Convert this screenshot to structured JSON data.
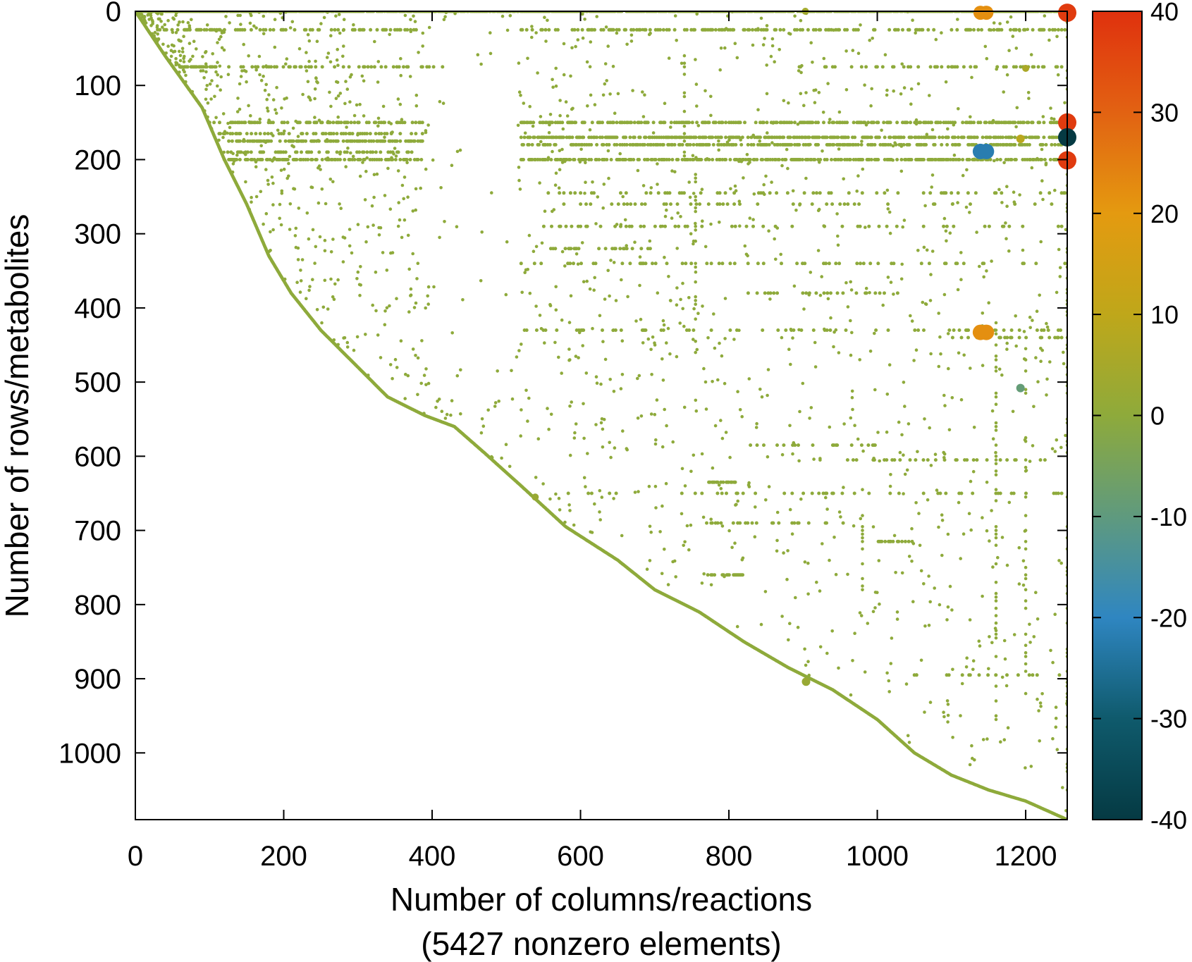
{
  "chart_data": {
    "type": "scatter",
    "subtype": "sparsity-pattern",
    "xlabel": "Number of columns/reactions",
    "xlabel_line2": "(5427 nonzero elements)",
    "ylabel": "Number of rows/metabolites",
    "xlim": [
      0,
      1256
    ],
    "ylim": [
      1090,
      0
    ],
    "x_ticks": [
      0,
      200,
      400,
      600,
      800,
      1000,
      1200
    ],
    "x_tick_labels": [
      "0",
      "200",
      "400",
      "600",
      "800",
      "1000",
      "1200"
    ],
    "y_ticks": [
      0,
      100,
      200,
      300,
      400,
      500,
      600,
      700,
      800,
      900,
      1000
    ],
    "y_tick_labels": [
      "0",
      "100",
      "200",
      "300",
      "400",
      "500",
      "600",
      "700",
      "800",
      "900",
      "1000"
    ],
    "colorbar": {
      "range": [
        -40,
        40
      ],
      "ticks": [
        40,
        30,
        20,
        10,
        0,
        -10,
        -20,
        -30,
        -40
      ],
      "tick_labels": [
        "40",
        "30",
        "20",
        "10",
        "0",
        "-10",
        "-20",
        "-30",
        "-40"
      ],
      "colors": [
        {
          "v": -40,
          "c": "#053a43"
        },
        {
          "v": -30,
          "c": "#0f5a6c"
        },
        {
          "v": -20,
          "c": "#2f86c1"
        },
        {
          "v": -10,
          "c": "#5f9a7e"
        },
        {
          "v": 0,
          "c": "#8eaa3b"
        },
        {
          "v": 10,
          "c": "#bfa71a"
        },
        {
          "v": 20,
          "c": "#e49a10"
        },
        {
          "v": 30,
          "c": "#e26212"
        },
        {
          "v": 40,
          "c": "#e0310e"
        }
      ]
    },
    "diagonal": [
      [
        0,
        0
      ],
      [
        40,
        60
      ],
      [
        90,
        130
      ],
      [
        120,
        200
      ],
      [
        150,
        260
      ],
      [
        180,
        330
      ],
      [
        210,
        380
      ],
      [
        250,
        430
      ],
      [
        300,
        480
      ],
      [
        340,
        520
      ],
      [
        390,
        545
      ],
      [
        430,
        560
      ],
      [
        470,
        595
      ],
      [
        520,
        640
      ],
      [
        580,
        695
      ],
      [
        650,
        740
      ],
      [
        700,
        780
      ],
      [
        760,
        810
      ],
      [
        820,
        850
      ],
      [
        880,
        885
      ],
      [
        940,
        915
      ],
      [
        1000,
        955
      ],
      [
        1050,
        1000
      ],
      [
        1100,
        1030
      ],
      [
        1150,
        1050
      ],
      [
        1200,
        1065
      ],
      [
        1256,
        1090
      ]
    ],
    "horizontal_bands": [
      {
        "y": 0,
        "x": [
          0,
          1256
        ],
        "density": 0.9
      },
      {
        "y": 25,
        "x": [
          30,
          380
        ],
        "density": 0.35
      },
      {
        "y": 25,
        "x": [
          520,
          1256
        ],
        "density": 0.3
      },
      {
        "y": 75,
        "x": [
          60,
          110
        ],
        "density": 0.8
      },
      {
        "y": 75,
        "x": [
          120,
          420
        ],
        "density": 0.2
      },
      {
        "y": 75,
        "x": [
          880,
          1256
        ],
        "density": 0.2
      },
      {
        "y": 150,
        "x": [
          100,
          390
        ],
        "density": 0.4
      },
      {
        "y": 150,
        "x": [
          520,
          1256
        ],
        "density": 0.5
      },
      {
        "y": 165,
        "x": [
          110,
          390
        ],
        "density": 0.35
      },
      {
        "y": 170,
        "x": [
          520,
          1256
        ],
        "density": 0.55
      },
      {
        "y": 175,
        "x": [
          120,
          390
        ],
        "density": 0.55
      },
      {
        "y": 180,
        "x": [
          520,
          1256
        ],
        "density": 0.45
      },
      {
        "y": 190,
        "x": [
          120,
          380
        ],
        "density": 0.25
      },
      {
        "y": 200,
        "x": [
          120,
          390
        ],
        "density": 0.45
      },
      {
        "y": 200,
        "x": [
          520,
          1256
        ],
        "density": 0.55
      },
      {
        "y": 245,
        "x": [
          540,
          1256
        ],
        "density": 0.12
      },
      {
        "y": 260,
        "x": [
          540,
          1256
        ],
        "density": 0.1
      },
      {
        "y": 290,
        "x": [
          540,
          1256
        ],
        "density": 0.1
      },
      {
        "y": 320,
        "x": [
          560,
          700
        ],
        "density": 0.3
      },
      {
        "y": 340,
        "x": [
          520,
          1256
        ],
        "density": 0.1
      },
      {
        "y": 380,
        "x": [
          820,
          1050
        ],
        "density": 0.15
      },
      {
        "y": 430,
        "x": [
          520,
          1256
        ],
        "density": 0.15
      },
      {
        "y": 440,
        "x": [
          1100,
          1256
        ],
        "density": 0.25
      },
      {
        "y": 585,
        "x": [
          820,
          1000
        ],
        "density": 0.2
      },
      {
        "y": 605,
        "x": [
          960,
          1256
        ],
        "density": 0.12
      },
      {
        "y": 635,
        "x": [
          770,
          810
        ],
        "density": 0.6
      },
      {
        "y": 650,
        "x": [
          540,
          1256
        ],
        "density": 0.08
      },
      {
        "y": 690,
        "x": [
          770,
          960
        ],
        "density": 0.15
      },
      {
        "y": 715,
        "x": [
          1000,
          1050
        ],
        "density": 0.4
      },
      {
        "y": 760,
        "x": [
          770,
          820
        ],
        "density": 0.5
      },
      {
        "y": 895,
        "x": [
          1050,
          1256
        ],
        "density": 0.1
      }
    ],
    "vertical_segments": [
      {
        "x": 740,
        "y": [
          60,
          210
        ]
      },
      {
        "x": 755,
        "y": [
          210,
          470
        ]
      },
      {
        "x": 1256,
        "y": [
          0,
          1090
        ]
      },
      {
        "x": 1160,
        "y": [
          420,
          960
        ]
      },
      {
        "x": 1200,
        "y": [
          440,
          940
        ]
      },
      {
        "x": 980,
        "y": [
          600,
          820
        ]
      }
    ],
    "highlighted_points": [
      {
        "x": 1139,
        "y": 2,
        "value": 22,
        "size": 10
      },
      {
        "x": 1147,
        "y": 2,
        "value": 22,
        "size": 10
      },
      {
        "x": 1256,
        "y": 2,
        "value": 38,
        "size": 13
      },
      {
        "x": 1256,
        "y": 150,
        "value": 38,
        "size": 13
      },
      {
        "x": 1256,
        "y": 170,
        "value": -40,
        "size": 13
      },
      {
        "x": 1256,
        "y": 201,
        "value": 38,
        "size": 13
      },
      {
        "x": 1139,
        "y": 189,
        "value": -22,
        "size": 11
      },
      {
        "x": 1147,
        "y": 189,
        "value": -22,
        "size": 11
      },
      {
        "x": 1139,
        "y": 433,
        "value": 22,
        "size": 11
      },
      {
        "x": 1147,
        "y": 433,
        "value": 22,
        "size": 11
      },
      {
        "x": 1193,
        "y": 508,
        "value": -9,
        "size": 6
      },
      {
        "x": 1193,
        "y": 172,
        "value": 9,
        "size": 6
      },
      {
        "x": 904,
        "y": 904,
        "value": 2,
        "size": 6
      },
      {
        "x": 539,
        "y": 655,
        "value": 2,
        "size": 5
      },
      {
        "x": 903,
        "y": 0,
        "value": 4,
        "size": 5
      },
      {
        "x": 1200,
        "y": 77,
        "value": 6,
        "size": 5
      }
    ],
    "default_value": 0,
    "grid": false,
    "legend": "none"
  }
}
